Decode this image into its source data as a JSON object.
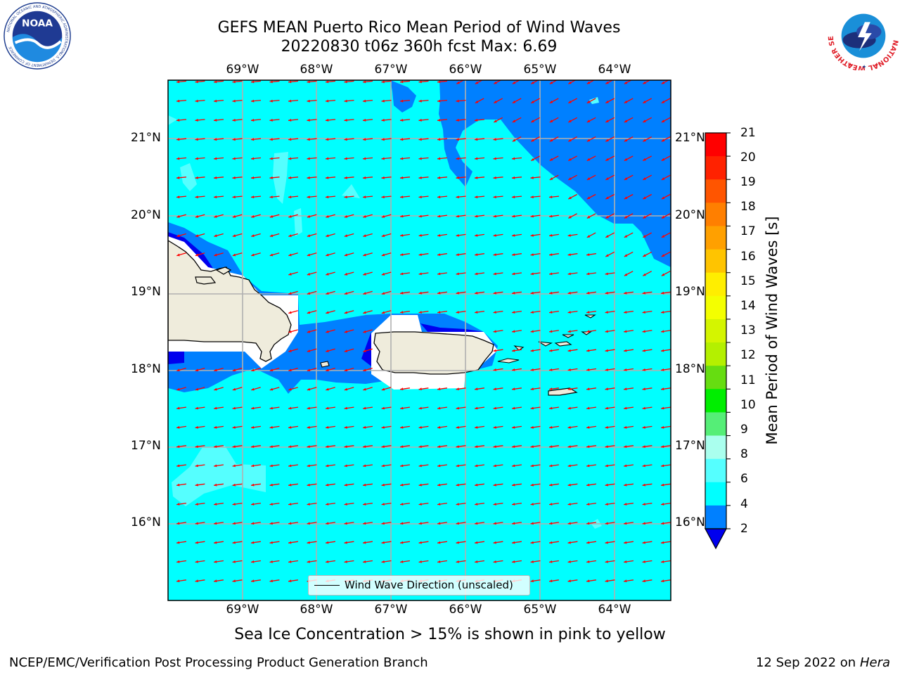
{
  "header": {
    "title_line1": "GEFS MEAN Puerto Rico Mean Period of Wind Waves",
    "title_line2": "20220830 t06z 360h fcst   Max: 6.69"
  },
  "logos": {
    "left": "noaa-logo",
    "left_text": "NOAA",
    "left_ring_text": "NATIONAL OCEANIC AND ATMOSPHERIC ADMINISTRATION",
    "left_ring_bottom": "U.S. DEPARTMENT OF COMMERCE",
    "right": "national-weather-service-logo",
    "right_ring_text": "NATIONAL WEATHER SERVICE"
  },
  "map": {
    "lon_labels": [
      "69°W",
      "68°W",
      "67°W",
      "66°W",
      "65°W",
      "64°W"
    ],
    "lat_labels": [
      "21°N",
      "20°N",
      "19°N",
      "18°N",
      "17°N",
      "16°N"
    ],
    "legend_label": "Wind Wave Direction (unscaled)",
    "arrow_color": "#ff0000",
    "land_color": "#efecdc"
  },
  "colorbar": {
    "label": "Mean Period of Wind Waves [s]",
    "ticks": [
      "21",
      "20",
      "19",
      "18",
      "17",
      "16",
      "15",
      "14",
      "13",
      "12",
      "11",
      "10",
      "9",
      "8",
      "6",
      "4",
      "2"
    ],
    "colors": [
      "#ff0000",
      "#ff2200",
      "#ff5500",
      "#ff7f00",
      "#ffa000",
      "#ffc400",
      "#ffee00",
      "#f4ff00",
      "#d4f500",
      "#b4f000",
      "#66dd11",
      "#00ee00",
      "#55ee77",
      "#aaffee",
      "#55ffff",
      "#00ffff",
      "#0080ff"
    ],
    "under_color": "#0000ee"
  },
  "footer": {
    "note": "Sea Ice Concentration > 15% is shown in pink to yellow",
    "left": "NCEP/EMC/Verification Post Processing Product Generation Branch",
    "date": "12 Sep 2022 on",
    "host": "Hera"
  }
}
